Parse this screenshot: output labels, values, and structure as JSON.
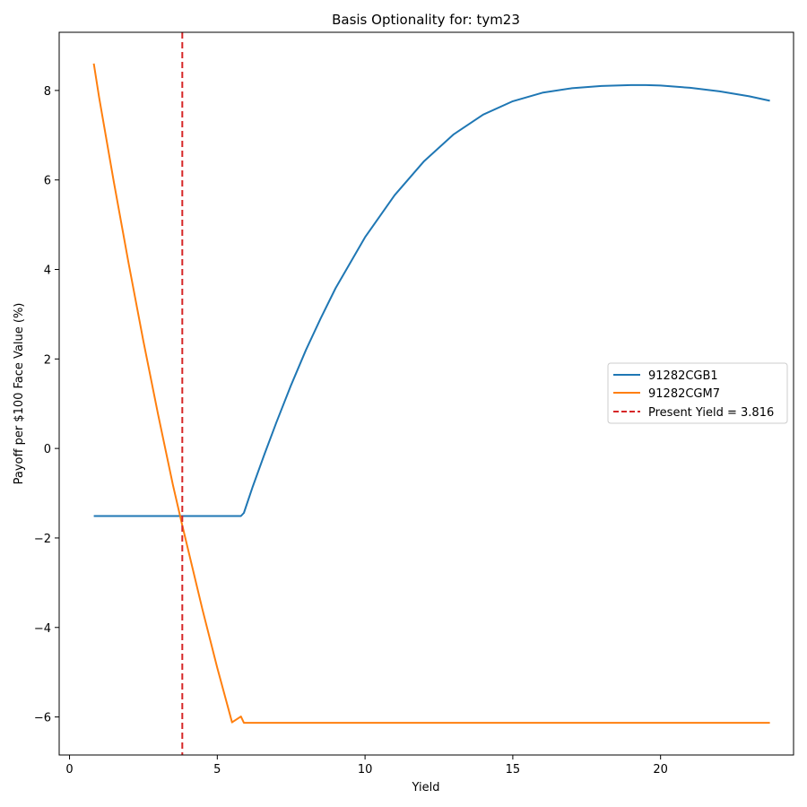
{
  "chart_data": {
    "type": "line",
    "title": "Basis Optionality for: tym23",
    "xlabel": "Yield",
    "ylabel": "Payoff per $100 Face Value (%)",
    "xlim": [
      -0.35,
      24.5
    ],
    "ylim": [
      -6.85,
      9.3
    ],
    "xticks": [
      0,
      5,
      10,
      15,
      20
    ],
    "yticks": [
      -6,
      -4,
      -2,
      0,
      2,
      4,
      6,
      8
    ],
    "ytick_labels": [
      "−6",
      "−4",
      "−2",
      "0",
      "2",
      "4",
      "6",
      "8"
    ],
    "grid": false,
    "legend_position": "center-right",
    "series": [
      {
        "name": "91282CGB1",
        "color": "#1f77b4",
        "style": "solid",
        "x": [
          0.82,
          2,
          3,
          4,
          5,
          5.8,
          5.9,
          6.2,
          6.6,
          7,
          7.5,
          8,
          8.5,
          9,
          10,
          11,
          12,
          13,
          14,
          15,
          16,
          17,
          18,
          19,
          19.5,
          20,
          21,
          22,
          23,
          23.7
        ],
        "y": [
          -1.51,
          -1.51,
          -1.51,
          -1.51,
          -1.51,
          -1.51,
          -1.44,
          -0.85,
          -0.12,
          0.58,
          1.42,
          2.2,
          2.91,
          3.58,
          4.72,
          5.66,
          6.42,
          7.02,
          7.46,
          7.76,
          7.95,
          8.05,
          8.1,
          8.12,
          8.12,
          8.11,
          8.06,
          7.98,
          7.87,
          7.77
        ]
      },
      {
        "name": "91282CGM7",
        "color": "#ff7f0e",
        "style": "solid",
        "x": [
          0.82,
          1,
          1.5,
          2,
          2.5,
          3,
          3.5,
          3.816,
          4,
          4.5,
          5,
          5.5,
          5.8,
          5.9,
          7,
          10,
          15,
          20,
          23.7
        ],
        "y": [
          8.6,
          7.85,
          5.95,
          4.13,
          2.4,
          0.75,
          -0.82,
          -1.72,
          -2.23,
          -3.6,
          -4.9,
          -6.12,
          -5.99,
          -6.13,
          -6.13,
          -6.13,
          -6.13,
          -6.13,
          -6.13
        ]
      }
    ],
    "reference_line": {
      "name": "Present Yield = 3.816",
      "x": 3.816,
      "color": "#d62728",
      "style": "dashed"
    }
  }
}
